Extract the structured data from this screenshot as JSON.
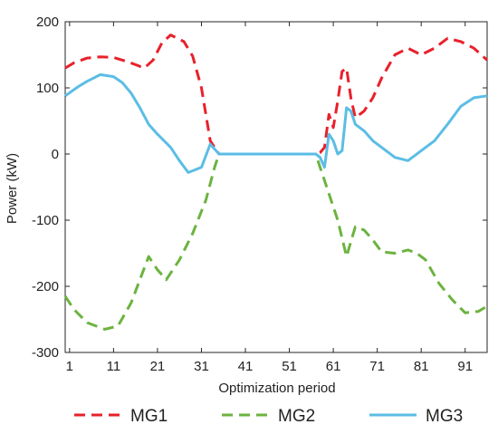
{
  "chart_data": {
    "type": "line",
    "xlabel": "Optimization period",
    "ylabel": "Power (kW)",
    "xlim": [
      0,
      96
    ],
    "ylim": [
      -300,
      200
    ],
    "xticks": [
      1,
      11,
      21,
      31,
      41,
      51,
      61,
      71,
      81,
      91
    ],
    "yticks": [
      -300,
      -200,
      -100,
      0,
      100,
      200
    ],
    "grid": false,
    "legend_position": "bottom",
    "series": [
      {
        "name": "MG1",
        "color": "#e8212b",
        "style": "dashed",
        "x": [
          0,
          2,
          5,
          8,
          11,
          14,
          16,
          18,
          20,
          22,
          24,
          27,
          29,
          31,
          33,
          35,
          37,
          57,
          58,
          59,
          60,
          61,
          62,
          63,
          64,
          65,
          66,
          68,
          70,
          72,
          75,
          78,
          81,
          84,
          87,
          90,
          93,
          96
        ],
        "values": [
          130,
          138,
          145,
          147,
          146,
          140,
          135,
          130,
          142,
          168,
          180,
          170,
          148,
          100,
          20,
          0,
          0,
          0,
          2,
          10,
          60,
          40,
          80,
          125,
          130,
          85,
          55,
          65,
          85,
          115,
          150,
          160,
          150,
          160,
          175,
          170,
          160,
          142
        ]
      },
      {
        "name": "MG2",
        "color": "#6cb33f",
        "style": "dashed",
        "x": [
          0,
          2,
          5,
          9,
          12,
          15,
          17,
          19,
          21,
          23,
          26,
          29,
          32,
          34,
          35,
          37,
          57,
          58,
          60,
          62,
          64,
          66,
          68,
          70,
          72,
          75,
          78,
          80,
          82,
          85,
          88,
          91,
          94,
          96
        ],
        "values": [
          -215,
          -235,
          -255,
          -265,
          -260,
          -225,
          -190,
          -155,
          -175,
          -190,
          -160,
          -120,
          -70,
          -20,
          0,
          0,
          0,
          -20,
          -60,
          -100,
          -155,
          -110,
          -115,
          -130,
          -148,
          -150,
          -145,
          -150,
          -160,
          -195,
          -220,
          -240,
          -238,
          -230
        ]
      },
      {
        "name": "MG3",
        "color": "#5bbde5",
        "style": "solid",
        "x": [
          0,
          3,
          5,
          8,
          11,
          13,
          15,
          17,
          19,
          21,
          24,
          26,
          28,
          31,
          33,
          35,
          37,
          57,
          58,
          59,
          60,
          61,
          62,
          63,
          64,
          65,
          66,
          68,
          70,
          72,
          75,
          78,
          81,
          84,
          87,
          90,
          93,
          96
        ],
        "values": [
          88,
          102,
          110,
          120,
          117,
          108,
          92,
          70,
          45,
          30,
          10,
          -10,
          -28,
          -20,
          15,
          0,
          0,
          0,
          -5,
          -20,
          30,
          20,
          0,
          5,
          70,
          65,
          45,
          35,
          20,
          10,
          -5,
          -10,
          5,
          20,
          45,
          72,
          85,
          88
        ]
      }
    ]
  }
}
